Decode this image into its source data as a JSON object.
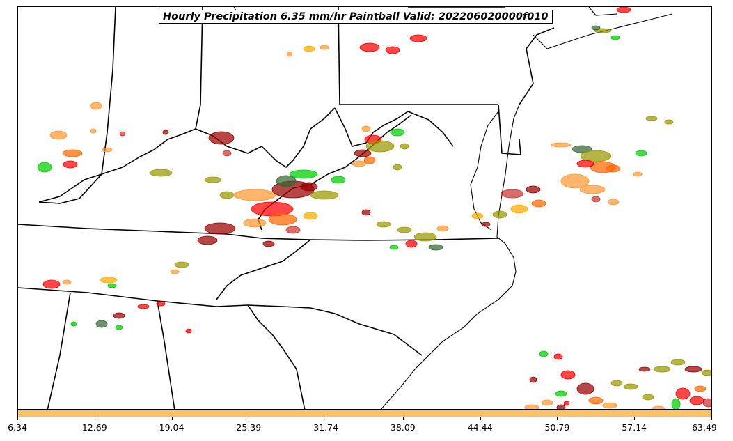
{
  "title": "Hourly Precipitation 6.35 mm/hr Paintball Valid: 202206020000f010",
  "colorbar": {
    "color": "#ffc266",
    "ticks": [
      "6.34",
      "12.69",
      "19.04",
      "25.39",
      "31.74",
      "38.09",
      "44.44",
      "50.79",
      "57.14",
      "63.49"
    ]
  },
  "member_colors": [
    "#ff0000",
    "#ff9933",
    "#00cc00",
    "#990000",
    "#999900",
    "#ffaa00",
    "#cc3333",
    "#336633",
    "#ff6600"
  ]
}
